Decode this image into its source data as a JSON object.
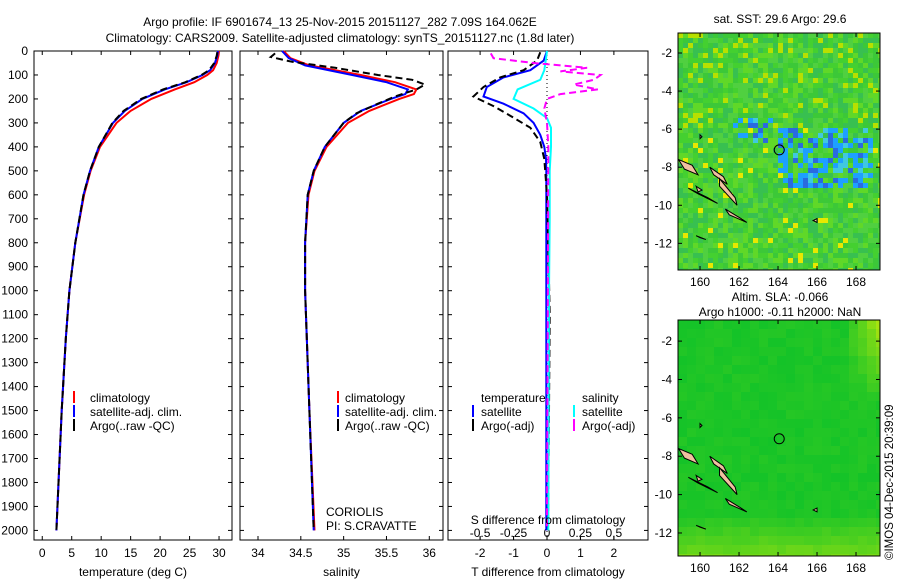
{
  "header": {
    "title_line1": "Argo profile: IF 6901674_13 25-Nov-2015 20151127_282 7.09S 164.062E",
    "title_line2": "Climatology: CARS2009. Satellite-adjusted climatology: synTS_20151127.nc (1.8d later)"
  },
  "colors": {
    "climatology": "#ff0000",
    "satellite": "#0000ff",
    "argo": "#000000",
    "sal_satellite": "#00ffff",
    "sal_argo": "#ff00ff"
  },
  "chart_data": [
    {
      "type": "line",
      "name": "temperature-profile",
      "xlabel": "temperature (deg C)",
      "xticks": [
        "0",
        "5",
        "10",
        "15",
        "20",
        "25",
        "30"
      ],
      "xtick_values": [
        0,
        5,
        10,
        15,
        20,
        25,
        30
      ],
      "xlim": [
        -1.4,
        32.2
      ],
      "ylim": [
        0,
        2040
      ],
      "yticks": [
        "0",
        "100",
        "200",
        "300",
        "400",
        "500",
        "600",
        "700",
        "800",
        "900",
        "1000",
        "1100",
        "1200",
        "1300",
        "1400",
        "1500",
        "1600",
        "1700",
        "1800",
        "1900",
        "2000"
      ],
      "ytick_values": [
        0,
        100,
        200,
        300,
        400,
        500,
        600,
        700,
        800,
        900,
        1000,
        1100,
        1200,
        1300,
        1400,
        1500,
        1600,
        1700,
        1800,
        1900,
        2000
      ],
      "legend": [
        "climatology",
        "satellite-adj. clim.",
        "Argo(..raw -QC)"
      ],
      "series": [
        {
          "name": "climatology",
          "style": "solid",
          "depth": [
            0,
            20,
            50,
            80,
            100,
            130,
            160,
            200,
            250,
            300,
            400,
            500,
            600,
            800,
            1000,
            1200,
            1500,
            2000
          ],
          "values": [
            30.0,
            29.9,
            29.6,
            29.0,
            28.0,
            25.8,
            22.5,
            18.5,
            15.0,
            12.6,
            9.8,
            8.2,
            7.1,
            5.6,
            4.6,
            4.0,
            3.3,
            2.4
          ]
        },
        {
          "name": "satellite-adj. clim.",
          "style": "solid",
          "depth": [
            0,
            20,
            50,
            80,
            100,
            130,
            160,
            200,
            250,
            300,
            400,
            500,
            600,
            800,
            1000,
            1200,
            1500,
            2000
          ],
          "values": [
            29.8,
            29.7,
            29.3,
            28.5,
            27.2,
            24.5,
            20.8,
            17.0,
            14.0,
            12.0,
            9.6,
            8.1,
            7.0,
            5.6,
            4.6,
            4.0,
            3.3,
            2.4
          ]
        },
        {
          "name": "Argo(..raw -QC)",
          "style": "dashed",
          "depth": [
            5,
            20,
            50,
            80,
            100,
            130,
            160,
            200,
            250,
            300,
            400,
            500,
            600,
            800,
            1000,
            1200,
            1500,
            2000
          ],
          "values": [
            29.7,
            29.6,
            29.2,
            28.3,
            27.0,
            24.3,
            20.5,
            16.8,
            13.8,
            11.9,
            9.6,
            8.1,
            7.0,
            5.6,
            4.6,
            4.0,
            3.3,
            2.4
          ]
        }
      ]
    },
    {
      "type": "line",
      "name": "salinity-profile",
      "xlabel": "salinity",
      "xticks": [
        "34",
        "34.5",
        "35",
        "35.5",
        "36"
      ],
      "xtick_values": [
        34,
        34.5,
        35,
        35.5,
        36
      ],
      "xlim": [
        33.79,
        36.16
      ],
      "ylim": [
        0,
        2040
      ],
      "legend": [
        "climatology",
        "satellite-adj. clim.",
        "Argo(..raw -QC)"
      ],
      "annotation": [
        "CORIOLIS",
        "PI: S.CRAVATTE"
      ],
      "series": [
        {
          "name": "climatology",
          "style": "solid",
          "depth": [
            0,
            30,
            60,
            100,
            130,
            160,
            180,
            200,
            250,
            300,
            400,
            500,
            600,
            800,
            1000,
            1500,
            2000
          ],
          "values": [
            34.3,
            34.38,
            34.6,
            35.2,
            35.6,
            35.85,
            35.82,
            35.65,
            35.3,
            35.05,
            34.8,
            34.66,
            34.59,
            34.55,
            34.55,
            34.6,
            34.66
          ]
        },
        {
          "name": "satellite-adj. clim.",
          "style": "solid",
          "depth": [
            0,
            30,
            60,
            100,
            130,
            160,
            180,
            200,
            250,
            300,
            400,
            500,
            600,
            800,
            1000,
            1500,
            2000
          ],
          "values": [
            34.28,
            34.36,
            34.55,
            35.1,
            35.5,
            35.75,
            35.72,
            35.55,
            35.2,
            35.0,
            34.78,
            34.65,
            34.58,
            34.55,
            34.55,
            34.6,
            34.65
          ]
        },
        {
          "name": "Argo(..raw -QC)",
          "style": "dashed",
          "depth": [
            10,
            25,
            45,
            70,
            100,
            120,
            140,
            160,
            190,
            220,
            260,
            300,
            400,
            500,
            600,
            800,
            1000,
            1500,
            2000
          ],
          "values": [
            34.2,
            34.15,
            34.4,
            34.9,
            35.4,
            35.8,
            35.95,
            35.85,
            35.6,
            35.4,
            35.15,
            35.0,
            34.78,
            34.65,
            34.58,
            34.55,
            34.55,
            34.6,
            34.65
          ]
        }
      ]
    },
    {
      "type": "line",
      "name": "difference-profile",
      "xlabel": "T difference from climatology",
      "xlabel_top": "S difference from climatology",
      "xticks": [
        "-2",
        "-1",
        "0",
        "1",
        "2"
      ],
      "xtick_values": [
        -2,
        -1,
        0,
        1,
        2
      ],
      "sticks": [
        "-0.5",
        "-0.25",
        "0",
        "0.25",
        "0.5"
      ],
      "stick_values": [
        -0.5,
        -0.25,
        0,
        0.25,
        0.5
      ],
      "xlim": [
        -2.96,
        3.02
      ],
      "s_scale": 4,
      "ylim": [
        0,
        2040
      ],
      "legend_temperature": {
        "title": "temperature",
        "items": [
          "satellite",
          "Argo(-adj)"
        ]
      },
      "legend_salinity": {
        "title": "salinity",
        "items": [
          "satellite",
          "Argo(-adj)"
        ]
      },
      "series": [
        {
          "name": "T satellite",
          "var": "T",
          "style": "solid",
          "depth": [
            0,
            40,
            80,
            110,
            150,
            190,
            220,
            260,
            300,
            350,
            400,
            450,
            500,
            2000
          ],
          "values": [
            0,
            -0.1,
            -0.5,
            -1.3,
            -1.8,
            -1.9,
            -1.3,
            -0.7,
            -0.4,
            -0.2,
            -0.08,
            -0.03,
            -0.02,
            -0.02
          ]
        },
        {
          "name": "T Argo(-adj)",
          "var": "T",
          "style": "dashed",
          "depth": [
            5,
            40,
            80,
            110,
            150,
            190,
            230,
            270,
            320,
            380,
            450,
            600,
            900,
            1100,
            1500,
            2000
          ],
          "values": [
            -0.2,
            -0.3,
            -0.7,
            -1.4,
            -1.9,
            -2.2,
            -1.6,
            -1.1,
            -0.5,
            -0.2,
            -0.08,
            0.0,
            0.05,
            0.08,
            0.06,
            0.03
          ]
        },
        {
          "name": "S satellite",
          "var": "S",
          "style": "solid",
          "depth": [
            0,
            40,
            80,
            120,
            160,
            200,
            240,
            280,
            320,
            400,
            500,
            700,
            1000,
            2000
          ],
          "values": [
            0,
            -0.01,
            -0.02,
            -0.05,
            -0.22,
            -0.25,
            -0.1,
            0.0,
            0.03,
            0.03,
            0.02,
            0.02,
            0.015,
            0.01
          ]
        },
        {
          "name": "S Argo(-adj)",
          "var": "S",
          "style": "dashed",
          "depth": [
            10,
            30,
            50,
            70,
            85,
            100,
            120,
            140,
            160,
            180,
            200,
            240,
            300,
            400,
            500,
            2000
          ],
          "values": [
            -0.42,
            -0.4,
            -0.1,
            0.3,
            0.1,
            0.4,
            0.35,
            0.2,
            0.38,
            0.1,
            0.0,
            -0.02,
            0.0,
            0.01,
            0.01,
            0.0
          ]
        }
      ]
    }
  ],
  "maps": [
    {
      "name": "sst-map",
      "title": "sat. SST: 29.6 Argo: 29.6",
      "lon_ticks": [
        "160",
        "162",
        "164",
        "166",
        "168"
      ],
      "lat_ticks": [
        "-2",
        "-4",
        "-6",
        "-8",
        "-10",
        "-12"
      ],
      "lonlim": [
        158.87,
        169.23
      ],
      "latlim": [
        -13.4,
        -0.95
      ],
      "argo_position": {
        "lat": -7.09,
        "lon": 164.062
      }
    },
    {
      "name": "sla-map",
      "title_line1": "Altim. SLA: -0.066",
      "title_line2": "Argo h1000: -0.11 h2000: NaN",
      "lon_ticks": [
        "160",
        "162",
        "164",
        "166",
        "168"
      ],
      "lat_ticks": [
        "-2",
        "-4",
        "-6",
        "-8",
        "-10",
        "-12"
      ],
      "lonlim": [
        158.87,
        169.23
      ],
      "latlim": [
        -13.2,
        -0.9
      ],
      "argo_position": {
        "lat": -7.09,
        "lon": 164.062
      }
    }
  ],
  "footer": {
    "timestamp": "©IMOS 04-Dec-2015 20:39:09"
  }
}
